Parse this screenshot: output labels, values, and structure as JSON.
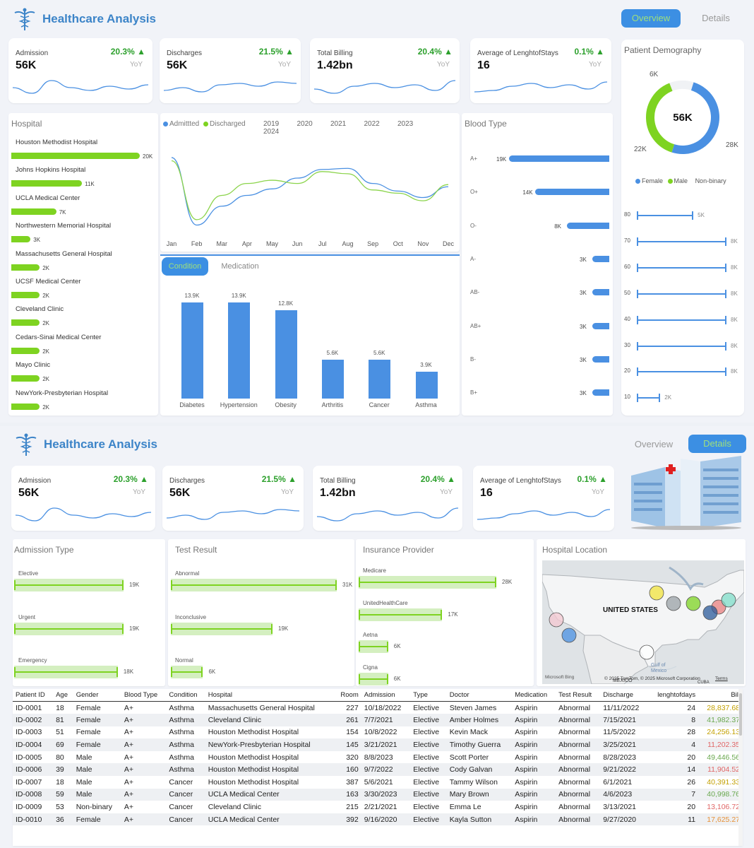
{
  "brand": "Healthcare Analysis",
  "tabs": {
    "overview": "Overview",
    "details": "Details"
  },
  "kpis": [
    {
      "label": "Admission",
      "value": "56K",
      "pct": "20.3% ▲",
      "yoy": "YoY"
    },
    {
      "label": "Discharges",
      "value": "56K",
      "pct": "21.5% ▲",
      "yoy": "YoY"
    },
    {
      "label": "Total Billing",
      "value": "1.42bn",
      "pct": "20.4% ▲",
      "yoy": "YoY"
    },
    {
      "label": "Average of LenghtofStays",
      "value": "16",
      "pct": "0.1% ▲",
      "yoy": "YoY"
    }
  ],
  "hospital": {
    "title": "Hospital",
    "items": [
      {
        "name": "Houston Methodist Hospital",
        "value": 20,
        "label": "20K"
      },
      {
        "name": "Johns Hopkins Hospital",
        "value": 11,
        "label": "11K"
      },
      {
        "name": "UCLA Medical Center",
        "value": 7,
        "label": "7K"
      },
      {
        "name": "Northwestern Memorial Hospital",
        "value": 3,
        "label": "3K"
      },
      {
        "name": "Massachusetts General Hospital",
        "value": 2,
        "label": "2K"
      },
      {
        "name": "UCSF Medical Center",
        "value": 2,
        "label": "2K"
      },
      {
        "name": "Cleveland Clinic",
        "value": 2,
        "label": "2K"
      },
      {
        "name": "Cedars-Sinai Medical Center",
        "value": 2,
        "label": "2K"
      },
      {
        "name": "Mayo Clinic",
        "value": 2,
        "label": "2K"
      },
      {
        "name": "NewYork-Presbyterian Hospital",
        "value": 2,
        "label": "2K"
      }
    ]
  },
  "trend": {
    "legend": [
      "Admittted",
      "Discharged"
    ],
    "years": [
      "2019",
      "2020",
      "2021",
      "2022",
      "2023",
      "2024"
    ],
    "months": [
      "Jan",
      "Feb",
      "Mar",
      "Apr",
      "May",
      "Jun",
      "Jul",
      "Aug",
      "Sep",
      "Oct",
      "Nov",
      "Dec"
    ]
  },
  "condition": {
    "tabs": [
      "Condition",
      "Medication"
    ],
    "items": [
      {
        "name": "Diabetes",
        "value": 13.9,
        "label": "13.9K"
      },
      {
        "name": "Hypertension",
        "value": 13.9,
        "label": "13.9K"
      },
      {
        "name": "Obesity",
        "value": 12.8,
        "label": "12.8K"
      },
      {
        "name": "Arthritis",
        "value": 5.6,
        "label": "5.6K"
      },
      {
        "name": "Cancer",
        "value": 5.6,
        "label": "5.6K"
      },
      {
        "name": "Asthma",
        "value": 3.9,
        "label": "3.9K"
      }
    ]
  },
  "blood": {
    "title": "Blood Type",
    "items": [
      {
        "name": "A+",
        "value": 19,
        "label": "19K"
      },
      {
        "name": "O+",
        "value": 14,
        "label": "14K"
      },
      {
        "name": "O-",
        "value": 8,
        "label": "8K"
      },
      {
        "name": "A-",
        "value": 3,
        "label": "3K"
      },
      {
        "name": "AB-",
        "value": 3,
        "label": "3K"
      },
      {
        "name": "AB+",
        "value": 3,
        "label": "3K"
      },
      {
        "name": "B-",
        "value": 3,
        "label": "3K"
      },
      {
        "name": "B+",
        "value": 3,
        "label": "3K"
      }
    ]
  },
  "demography": {
    "title": "Patient Demography",
    "total": "56K",
    "labels": {
      "female": "28K",
      "male": "22K",
      "nonbinary": "6K"
    },
    "slices": [
      28,
      22,
      6
    ],
    "legend": [
      "Female",
      "Male",
      "Non-binary"
    ],
    "colors": [
      "#4a90e2",
      "#7ed321",
      "#f0f2f5"
    ],
    "age": [
      {
        "age": "80",
        "value": 5,
        "label": "5K"
      },
      {
        "age": "70",
        "value": 8,
        "label": "8K"
      },
      {
        "age": "60",
        "value": 8,
        "label": "8K"
      },
      {
        "age": "50",
        "value": 8,
        "label": "8K"
      },
      {
        "age": "40",
        "value": 8,
        "label": "8K"
      },
      {
        "age": "30",
        "value": 8,
        "label": "8K"
      },
      {
        "age": "20",
        "value": 8,
        "label": "8K"
      },
      {
        "age": "10",
        "value": 2,
        "label": "2K"
      }
    ]
  },
  "admission_type": {
    "title": "Admission Type",
    "items": [
      {
        "name": "Elective",
        "value": 19,
        "label": "19K"
      },
      {
        "name": "Urgent",
        "value": 19,
        "label": "19K"
      },
      {
        "name": "Emergency",
        "value": 18,
        "label": "18K"
      }
    ]
  },
  "test_result": {
    "title": "Test Result",
    "items": [
      {
        "name": "Abnormal",
        "value": 31,
        "label": "31K"
      },
      {
        "name": "Inconclusive",
        "value": 19,
        "label": "19K"
      },
      {
        "name": "Normal",
        "value": 6,
        "label": "6K"
      }
    ]
  },
  "insurance": {
    "title": "Insurance Provider",
    "items": [
      {
        "name": "Medicare",
        "value": 28,
        "label": "28K"
      },
      {
        "name": "UnitedHealthCare",
        "value": 17,
        "label": "17K"
      },
      {
        "name": "Aetna",
        "value": 6,
        "label": "6K"
      },
      {
        "name": "Cigna",
        "value": 6,
        "label": "6K"
      }
    ]
  },
  "map": {
    "title": "Hospital Location",
    "country": "UNITED STATES",
    "gulf": "Gulf of Mexico",
    "mexico": "MEXICO",
    "cuba": "CUBA",
    "bing": "Microsoft Bing",
    "copyright": "© 2025 TomTom, © 2025 Microsoft Corporation",
    "terms": "Terms"
  },
  "table": {
    "headers": [
      "Patient ID",
      "Age",
      "Gender",
      "Blood Type",
      "Condition",
      "Hospital",
      "Room",
      "Admission",
      "Type",
      "Doctor",
      "Medication",
      "Test Result",
      "Discharge",
      "lenghtofdays",
      "Bill"
    ],
    "rows": [
      [
        "ID-0001",
        "18",
        "Female",
        "A+",
        "Asthma",
        "Massachusetts General Hospital",
        "227",
        "10/18/2022",
        "Elective",
        "Steven James",
        "Aspirin",
        "Abnormal",
        "11/11/2022",
        "24",
        "28,837.68"
      ],
      [
        "ID-0002",
        "81",
        "Female",
        "A+",
        "Asthma",
        "Cleveland Clinic",
        "261",
        "7/7/2021",
        "Elective",
        "Amber Holmes",
        "Aspirin",
        "Abnormal",
        "7/15/2021",
        "8",
        "41,982.37"
      ],
      [
        "ID-0003",
        "51",
        "Female",
        "A+",
        "Asthma",
        "Houston Methodist Hospital",
        "154",
        "10/8/2022",
        "Elective",
        "Kevin Mack",
        "Aspirin",
        "Abnormal",
        "11/5/2022",
        "28",
        "24,256.13"
      ],
      [
        "ID-0004",
        "69",
        "Female",
        "A+",
        "Asthma",
        "NewYork-Presbyterian Hospital",
        "145",
        "3/21/2021",
        "Elective",
        "Timothy Guerra",
        "Aspirin",
        "Abnormal",
        "3/25/2021",
        "4",
        "11,202.35"
      ],
      [
        "ID-0005",
        "80",
        "Male",
        "A+",
        "Asthma",
        "Houston Methodist Hospital",
        "320",
        "8/8/2023",
        "Elective",
        "Scott Porter",
        "Aspirin",
        "Abnormal",
        "8/28/2023",
        "20",
        "49,446.56"
      ],
      [
        "ID-0006",
        "39",
        "Male",
        "A+",
        "Asthma",
        "Houston Methodist Hospital",
        "160",
        "9/7/2022",
        "Elective",
        "Cody Galvan",
        "Aspirin",
        "Abnormal",
        "9/21/2022",
        "14",
        "11,904.52"
      ],
      [
        "ID-0007",
        "18",
        "Male",
        "A+",
        "Cancer",
        "Houston Methodist Hospital",
        "387",
        "5/6/2021",
        "Elective",
        "Tammy Wilson",
        "Aspirin",
        "Abnormal",
        "6/1/2021",
        "26",
        "40,391.33"
      ],
      [
        "ID-0008",
        "59",
        "Male",
        "A+",
        "Cancer",
        "UCLA Medical Center",
        "163",
        "3/30/2023",
        "Elective",
        "Mary Brown",
        "Aspirin",
        "Abnormal",
        "4/6/2023",
        "7",
        "40,998.76"
      ],
      [
        "ID-0009",
        "53",
        "Non-binary",
        "A+",
        "Cancer",
        "Cleveland Clinic",
        "215",
        "2/21/2021",
        "Elective",
        "Emma Le",
        "Aspirin",
        "Abnormal",
        "3/13/2021",
        "20",
        "13,106.72"
      ],
      [
        "ID-0010",
        "36",
        "Female",
        "A+",
        "Cancer",
        "UCLA Medical Center",
        "392",
        "9/16/2020",
        "Elective",
        "Kayla Sutton",
        "Aspirin",
        "Abnormal",
        "9/27/2020",
        "11",
        "17,625.27"
      ]
    ],
    "bill_colors": [
      "#c3a000",
      "#6aa84f",
      "#c3a000",
      "#e06666",
      "#6aa84f",
      "#e06666",
      "#c3a000",
      "#6aa84f",
      "#e06666",
      "#e69138"
    ]
  }
}
